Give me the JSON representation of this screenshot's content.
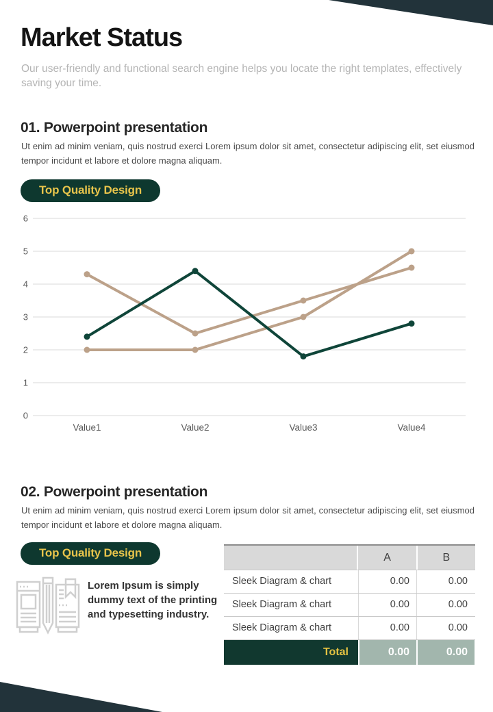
{
  "page": {
    "title": "Market Status",
    "subtitle": "Our user-friendly and functional search engine helps you locate the right templates, effectively saving your time."
  },
  "colors": {
    "charcoal_wedge": "#22333a",
    "dark_green": "#0e382f",
    "accent_yellow": "#e8c44b",
    "line_green": "#0f4539",
    "line_tan": "#bca189",
    "table_header_gray": "#d9d9d9",
    "table_total_sage": "#a2b6ad"
  },
  "icons": {
    "illustration": "document-pencil-icon"
  },
  "section1": {
    "heading": "01. Powerpoint presentation",
    "body": "Ut enim ad minim veniam, quis nostrud exerci  Lorem ipsum dolor sit amet, consectetur adipiscing elit, set eiusmod tempor incidunt et labore et dolore magna aliquam.",
    "badge": "Top Quality Design"
  },
  "chart_data": {
    "type": "line",
    "title": "",
    "xlabel": "",
    "ylabel": "",
    "categories": [
      "Value1",
      "Value2",
      "Value3",
      "Value4"
    ],
    "series": [
      {
        "name": "tan-series-1",
        "color": "#bca189",
        "values": [
          4.3,
          2.5,
          3.5,
          4.5
        ]
      },
      {
        "name": "tan-series-2",
        "color": "#bca189",
        "values": [
          2.0,
          2.0,
          3.0,
          5.0
        ]
      },
      {
        "name": "green-series",
        "color": "#0f4539",
        "values": [
          2.4,
          4.4,
          1.8,
          2.8
        ]
      }
    ],
    "ylim": [
      0,
      6
    ],
    "yticks": [
      0,
      1,
      2,
      3,
      4,
      5,
      6
    ],
    "grid": true,
    "legend": "none"
  },
  "section2": {
    "heading": "02. Powerpoint presentation",
    "body": "Ut enim ad minim veniam, quis nostrud exerci  Lorem ipsum dolor sit amet, consectetur adipiscing elit, set eiusmod tempor incidunt et labore et dolore magna aliquam.",
    "badge": "Top Quality Design",
    "caption": "Lorem Ipsum is simply dummy text of the printing and typesetting industry."
  },
  "table": {
    "columns": [
      "",
      "A",
      "B"
    ],
    "rows": [
      {
        "label": "Sleek Diagram & chart",
        "a": "0.00",
        "b": "0.00"
      },
      {
        "label": "Sleek Diagram & chart",
        "a": "0.00",
        "b": "0.00"
      },
      {
        "label": "Sleek Diagram & chart",
        "a": "0.00",
        "b": "0.00"
      }
    ],
    "total": {
      "label": "Total",
      "a": "0.00",
      "b": "0.00"
    }
  }
}
